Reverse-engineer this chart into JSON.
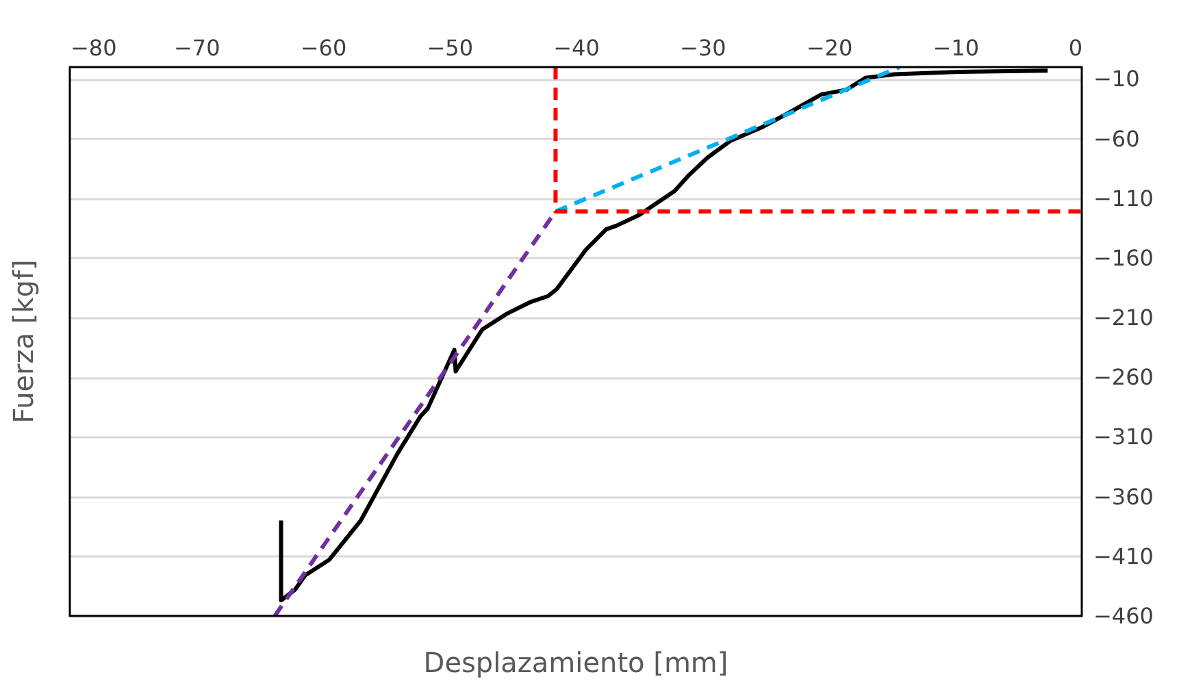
{
  "chart_data": {
    "type": "line",
    "xlabel": "Desplazamiento [mm]",
    "ylabel": "Fuerza [kgf]",
    "xlim": [
      -80,
      0
    ],
    "xticks": [
      -80,
      -70,
      -60,
      -50,
      -40,
      -30,
      -20,
      -10,
      0
    ],
    "ylim": [
      -460,
      0
    ],
    "yticks": [
      -10,
      -60,
      -110,
      -160,
      -210,
      -260,
      -310,
      -360,
      -410,
      -460
    ],
    "grid": "y",
    "legend": false,
    "marker": "none",
    "series": [
      {
        "color": "#000000",
        "line_style": "solid",
        "x": [
          -63.3,
          -63.3,
          -62.2,
          -61.4,
          -59.5,
          -57.0,
          -54.1,
          -52.3,
          -51.7,
          -49.6,
          -49.5,
          -47.4,
          -45.5,
          -43.6,
          -42.2,
          -41.5,
          -39.2,
          -37.6,
          -36.8,
          -35.0,
          -32.2,
          -31.1,
          -29.6,
          -27.8,
          -25.2,
          -23.1,
          -20.6,
          -18.6,
          -17.1,
          -14.8,
          -9.7,
          -2.7
        ],
        "values": [
          -380,
          -447,
          -438,
          -426,
          -413,
          -380,
          -324,
          -293,
          -286,
          -237,
          -255,
          -220,
          -207,
          -197,
          -192,
          -186,
          -153,
          -136,
          -133,
          -124,
          -104,
          -91,
          -76,
          -62,
          -50,
          -38,
          -23,
          -19,
          -9,
          -6,
          -4,
          -3
        ]
      },
      {
        "color": "#7030a0",
        "line_style": "dashed",
        "x": [
          -63.8,
          -41.6
        ],
        "values": [
          -460,
          -121
        ]
      },
      {
        "color": "#00b0f0",
        "line_style": "dashed",
        "x": [
          -41.6,
          -14.4
        ],
        "values": [
          -121,
          0
        ]
      },
      {
        "color": "#ff0000",
        "line_style": "dashed",
        "x": [
          -41.6,
          -41.6,
          0
        ],
        "values": [
          0,
          -121,
          -121
        ]
      }
    ]
  }
}
